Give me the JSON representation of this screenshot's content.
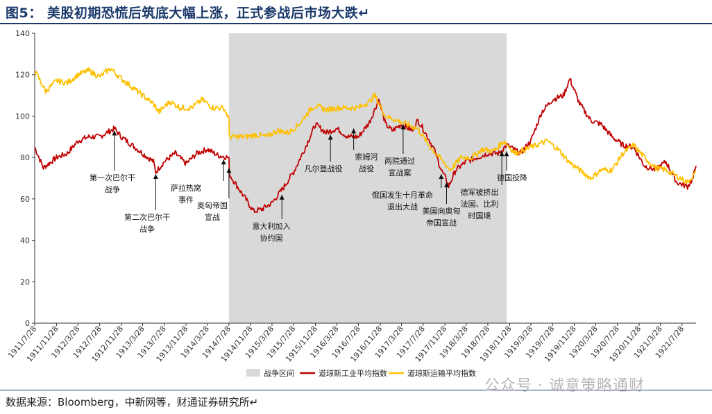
{
  "title": "图5： 美股初期恐慌后筑底大幅上涨，正式参战后市场大跌↵",
  "source": "数据来源：Bloomberg，中新网等，财通证券研究所↵",
  "watermark": "公众号 · 诚意策略通财",
  "chart_data": {
    "type": "line",
    "ylim": [
      0,
      140
    ],
    "yticks": [
      0,
      20,
      40,
      60,
      80,
      100,
      120,
      140
    ],
    "x_tick_labels": [
      "1911/7/28",
      "1911/11/28",
      "1912/3/28",
      "1912/7/28",
      "1912/11/28",
      "1913/3/28",
      "1913/7/28",
      "1913/11/28",
      "1914/3/28",
      "1914/7/28",
      "1914/11/28",
      "1915/3/28",
      "1915/7/28",
      "1915/11/28",
      "1916/3/28",
      "1916/7/28",
      "1916/11/28",
      "1917/3/28",
      "1917/7/28",
      "1917/11/28",
      "1918/3/28",
      "1918/7/28",
      "1918/11/28",
      "1919/3/28",
      "1919/7/28",
      "1919/11/28",
      "1920/3/28",
      "1920/7/28",
      "1920/11/28",
      "1921/3/28",
      "1921/7/28"
    ],
    "x_range": [
      "1911/7/28",
      "1921/10/15"
    ],
    "shade": {
      "name": "战争区间",
      "start": "1914/7/28",
      "end": "1918/11/11",
      "color": "#d9d9d9"
    },
    "series": [
      {
        "name": "道琼斯工业平均指数",
        "color": "#c00000",
        "points": [
          [
            "1911/7/28",
            85
          ],
          [
            "1911/9/15",
            75
          ],
          [
            "1911/11/28",
            80
          ],
          [
            "1912/1/28",
            82
          ],
          [
            "1912/3/28",
            88
          ],
          [
            "1912/5/28",
            90
          ],
          [
            "1912/7/28",
            90
          ],
          [
            "1912/9/28",
            93
          ],
          [
            "1912/10/20",
            94
          ],
          [
            "1912/11/28",
            90
          ],
          [
            "1913/1/28",
            86
          ],
          [
            "1913/3/28",
            82
          ],
          [
            "1913/5/28",
            78
          ],
          [
            "1913/6/10",
            73
          ],
          [
            "1913/7/28",
            78
          ],
          [
            "1913/9/28",
            82
          ],
          [
            "1913/11/28",
            77
          ],
          [
            "1914/1/28",
            82
          ],
          [
            "1914/3/28",
            84
          ],
          [
            "1914/5/28",
            81
          ],
          [
            "1914/7/28",
            80
          ],
          [
            "1914/7/30",
            72
          ],
          [
            "1914/12/15",
            54
          ],
          [
            "1915/1/28",
            55
          ],
          [
            "1915/3/28",
            58
          ],
          [
            "1915/5/28",
            65
          ],
          [
            "1915/7/28",
            73
          ],
          [
            "1915/9/28",
            84
          ],
          [
            "1915/11/28",
            96
          ],
          [
            "1916/1/28",
            92
          ],
          [
            "1916/3/28",
            94
          ],
          [
            "1916/5/28",
            90
          ],
          [
            "1916/7/28",
            90
          ],
          [
            "1916/9/28",
            97
          ],
          [
            "1916/11/20",
            108
          ],
          [
            "1916/12/28",
            96
          ],
          [
            "1917/2/3",
            93
          ],
          [
            "1917/3/28",
            96
          ],
          [
            "1917/5/28",
            93
          ],
          [
            "1917/6/28",
            98
          ],
          [
            "1917/7/28",
            94
          ],
          [
            "1917/9/28",
            84
          ],
          [
            "1917/11/7",
            74
          ],
          [
            "1917/12/7",
            69
          ],
          [
            "1917/12/19",
            66
          ],
          [
            "1918/1/28",
            74
          ],
          [
            "1918/3/28",
            78
          ],
          [
            "1918/5/28",
            80
          ],
          [
            "1918/7/28",
            82
          ],
          [
            "1918/9/28",
            82
          ],
          [
            "1918/11/11",
            86
          ],
          [
            "1919/1/28",
            82
          ],
          [
            "1919/3/28",
            88
          ],
          [
            "1919/5/28",
            102
          ],
          [
            "1919/7/28",
            108
          ],
          [
            "1919/9/28",
            110
          ],
          [
            "1919/11/3",
            118
          ],
          [
            "1919/12/28",
            106
          ],
          [
            "1920/2/28",
            98
          ],
          [
            "1920/4/28",
            96
          ],
          [
            "1920/6/28",
            90
          ],
          [
            "1920/8/28",
            86
          ],
          [
            "1920/10/28",
            85
          ],
          [
            "1920/12/28",
            76
          ],
          [
            "1921/2/28",
            74
          ],
          [
            "1921/4/28",
            78
          ],
          [
            "1921/6/28",
            68
          ],
          [
            "1921/8/28",
            66
          ],
          [
            "1921/9/28",
            70
          ],
          [
            "1921/10/15",
            76
          ]
        ]
      },
      {
        "name": "道琼斯运输平均指数",
        "color": "#ffc000",
        "points": [
          [
            "1911/7/28",
            122
          ],
          [
            "1911/9/28",
            112
          ],
          [
            "1911/11/28",
            117
          ],
          [
            "1912/1/28",
            116
          ],
          [
            "1912/3/28",
            120
          ],
          [
            "1912/5/28",
            122
          ],
          [
            "1912/7/28",
            119
          ],
          [
            "1912/9/28",
            123
          ],
          [
            "1912/11/28",
            118
          ],
          [
            "1913/1/28",
            114
          ],
          [
            "1913/3/28",
            110
          ],
          [
            "1913/5/28",
            106
          ],
          [
            "1913/6/28",
            102
          ],
          [
            "1913/8/28",
            107
          ],
          [
            "1913/10/28",
            104
          ],
          [
            "1913/12/28",
            104
          ],
          [
            "1914/2/28",
            108
          ],
          [
            "1914/4/28",
            104
          ],
          [
            "1914/6/28",
            104
          ],
          [
            "1914/7/28",
            99
          ],
          [
            "1914/7/30",
            90
          ],
          [
            "1914/10/28",
            90
          ],
          [
            "1914/12/28",
            91
          ],
          [
            "1915/2/28",
            90
          ],
          [
            "1915/4/28",
            93
          ],
          [
            "1915/6/28",
            92
          ],
          [
            "1915/8/28",
            96
          ],
          [
            "1915/10/28",
            103
          ],
          [
            "1915/11/28",
            105
          ],
          [
            "1916/1/28",
            103
          ],
          [
            "1916/3/28",
            104
          ],
          [
            "1916/5/28",
            104
          ],
          [
            "1916/7/28",
            104
          ],
          [
            "1916/9/28",
            107
          ],
          [
            "1916/10/28",
            110
          ],
          [
            "1916/12/28",
            100
          ],
          [
            "1917/2/28",
            98
          ],
          [
            "1917/4/28",
            96
          ],
          [
            "1917/6/28",
            94
          ],
          [
            "1917/8/28",
            86
          ],
          [
            "1917/10/28",
            80
          ],
          [
            "1917/12/28",
            74
          ],
          [
            "1918/2/28",
            80
          ],
          [
            "1918/4/28",
            80
          ],
          [
            "1918/6/28",
            84
          ],
          [
            "1918/8/28",
            83
          ],
          [
            "1918/10/28",
            88
          ],
          [
            "1918/12/28",
            82
          ],
          [
            "1919/2/28",
            84
          ],
          [
            "1919/4/28",
            86
          ],
          [
            "1919/6/28",
            88
          ],
          [
            "1919/8/28",
            84
          ],
          [
            "1919/10/28",
            78
          ],
          [
            "1919/12/28",
            74
          ],
          [
            "1920/2/28",
            70
          ],
          [
            "1920/4/28",
            74
          ],
          [
            "1920/6/28",
            74
          ],
          [
            "1920/8/28",
            82
          ],
          [
            "1920/10/28",
            86
          ],
          [
            "1920/12/28",
            80
          ],
          [
            "1921/2/28",
            75
          ],
          [
            "1921/4/28",
            74
          ],
          [
            "1921/6/28",
            71
          ],
          [
            "1921/8/28",
            68
          ],
          [
            "1921/10/15",
            73
          ]
        ]
      }
    ],
    "annotations": [
      {
        "lines": [
          "第一次巴尔干",
          "战争"
        ],
        "date": "1912/10/20",
        "y": 94
      },
      {
        "lines": [
          "第二次巴尔干",
          "战争"
        ],
        "date": "1913/6/10",
        "y": 73
      },
      {
        "lines": [
          "萨拉热窝",
          "事件"
        ],
        "date": "1914/6/28",
        "y": 80
      },
      {
        "lines": [
          "奥匈帝国",
          "宣战"
        ],
        "date": "1914/7/28",
        "y": 76
      },
      {
        "lines": [
          "意大利加入",
          "协约国"
        ],
        "date": "1915/5/23",
        "y": 63
      },
      {
        "lines": [
          "凡尔登战役"
        ],
        "date": "1916/2/21",
        "y": 92
      },
      {
        "lines": [
          "索姆河",
          "战役"
        ],
        "date": "1916/7/1",
        "y": 95
      },
      {
        "lines": [
          "两院通过",
          "宣战案"
        ],
        "date": "1917/4/6",
        "y": 97
      },
      {
        "lines": [
          "俄国发生十月革命",
          "退出大战"
        ],
        "date": "1917/11/7",
        "y": 73
      },
      {
        "lines": [
          "美国向奥匈",
          "帝国宣战"
        ],
        "date": "1917/12/7",
        "y": 69
      },
      {
        "lines": [
          "德军被挤出",
          "法国、比利",
          "时国境"
        ],
        "date": "1918/10/15",
        "y": 84
      },
      {
        "lines": [
          "德国投降"
        ],
        "date": "1918/11/11",
        "y": 84
      }
    ]
  }
}
